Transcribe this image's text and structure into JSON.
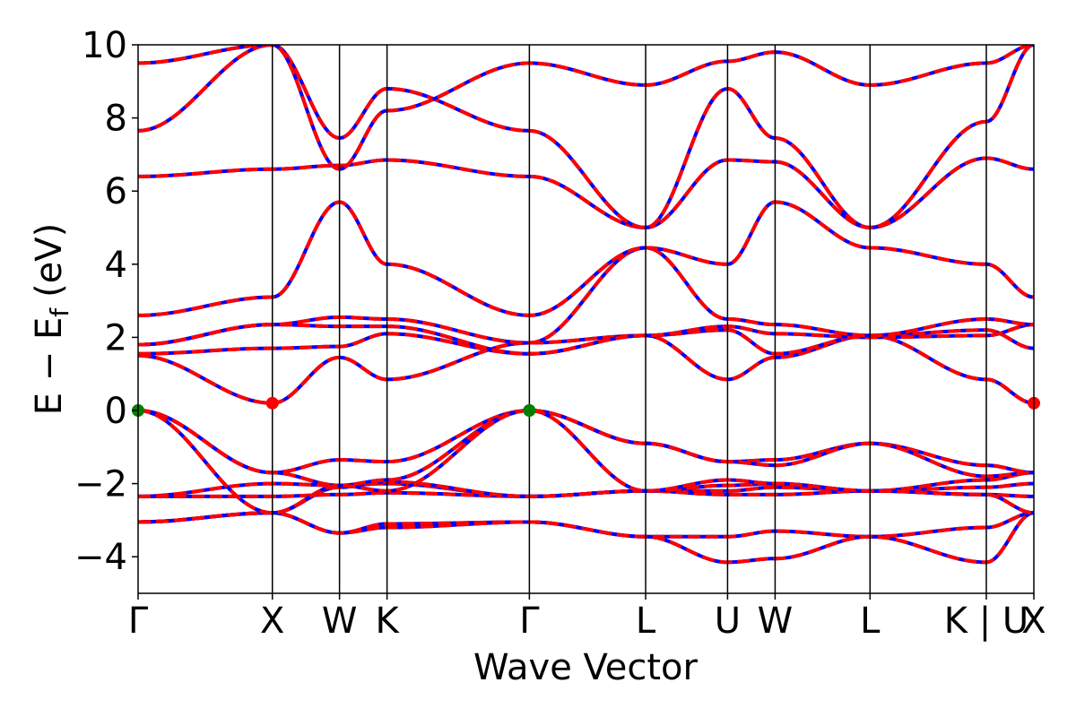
{
  "chart_data": {
    "type": "line",
    "title": "",
    "xlabel": "Wave Vector",
    "ylabel": "E − E",
    "ylabel_subscript": "f",
    "ylabel_unit": "(eV)",
    "ylim": [
      -5,
      10
    ],
    "yticks": [
      -4,
      -2,
      0,
      2,
      4,
      6,
      8,
      10
    ],
    "ytick_labels": [
      "−4",
      "−2",
      "0",
      "2",
      "4",
      "6",
      "8",
      "10"
    ],
    "grid": false,
    "legend": "none",
    "kpath": [
      {
        "label": "Γ",
        "x": 0.0
      },
      {
        "label": "X",
        "x": 1.0
      },
      {
        "label": "W",
        "x": 1.5
      },
      {
        "label": "K",
        "x": 1.854
      },
      {
        "label": "Γ",
        "x": 2.914
      },
      {
        "label": "L",
        "x": 3.78
      },
      {
        "label": "U",
        "x": 4.39
      },
      {
        "label": "W",
        "x": 4.744
      },
      {
        "label": "L",
        "x": 5.451
      },
      {
        "label": "K | U",
        "x": 6.317
      },
      {
        "label": "X",
        "x": 6.671
      }
    ],
    "colors": {
      "dft": "#0000ff",
      "fit": "#ff0000",
      "vbm": "#007f00",
      "cbm": "#ff0000"
    },
    "extrema": [
      {
        "kind": "VBM",
        "x": 0.0,
        "y": 0.0
      },
      {
        "kind": "VBM",
        "x": 2.914,
        "y": 0.0
      },
      {
        "kind": "CBM",
        "x": 1.0,
        "y": 0.2
      },
      {
        "kind": "CBM",
        "x": 6.671,
        "y": 0.2
      }
    ],
    "bands": [
      [
        [
          0,
          -2.35
        ],
        [
          1,
          -2.0
        ],
        [
          1.5,
          -2.05
        ],
        [
          1.854,
          -2.0
        ],
        [
          2.914,
          -2.35
        ],
        [
          3.78,
          -2.2
        ],
        [
          4.39,
          -2.2
        ],
        [
          4.744,
          -2.1
        ],
        [
          5.451,
          -2.2
        ],
        [
          6.317,
          -2.3
        ],
        [
          6.671,
          -2.35
        ]
      ],
      [
        [
          0,
          -2.35
        ],
        [
          1,
          -2.35
        ],
        [
          1.5,
          -2.3
        ],
        [
          1.854,
          -2.25
        ],
        [
          2.914,
          -2.35
        ],
        [
          3.78,
          -2.2
        ],
        [
          4.39,
          -2.3
        ],
        [
          4.744,
          -2.3
        ],
        [
          5.451,
          -2.2
        ],
        [
          6.317,
          -2.1
        ],
        [
          6.671,
          -2.0
        ]
      ],
      [
        [
          0,
          -3.05
        ],
        [
          1,
          -2.8
        ],
        [
          1.5,
          -2.1
        ],
        [
          1.854,
          -1.95
        ],
        [
          2.914,
          -2.35
        ],
        [
          3.78,
          -2.2
        ],
        [
          4.39,
          -2.05
        ],
        [
          4.744,
          -2.0
        ],
        [
          5.451,
          -2.2
        ],
        [
          6.317,
          -1.9
        ],
        [
          6.671,
          -1.7
        ]
      ],
      [
        [
          0,
          -3.05
        ],
        [
          1,
          -2.8
        ],
        [
          1.5,
          -3.35
        ],
        [
          1.854,
          -3.1
        ],
        [
          2.914,
          -3.05
        ],
        [
          3.78,
          -3.45
        ],
        [
          4.39,
          -3.45
        ],
        [
          4.744,
          -3.3
        ],
        [
          5.451,
          -3.45
        ],
        [
          6.317,
          -3.2
        ],
        [
          6.671,
          -2.8
        ]
      ],
      [
        [
          0,
          -3.05
        ],
        [
          1,
          -2.8
        ],
        [
          1.5,
          -3.35
        ],
        [
          1.854,
          -3.2
        ],
        [
          2.914,
          -3.05
        ],
        [
          3.78,
          -3.45
        ],
        [
          4.39,
          -4.15
        ],
        [
          4.744,
          -4.05
        ],
        [
          5.451,
          -3.45
        ],
        [
          6.317,
          -4.15
        ],
        [
          6.671,
          -2.8
        ]
      ],
      [
        [
          0,
          0.0
        ],
        [
          1,
          -1.7
        ],
        [
          1.5,
          -1.35
        ],
        [
          1.854,
          -1.4
        ],
        [
          2.914,
          0.0
        ],
        [
          3.78,
          -0.9
        ],
        [
          4.39,
          -1.4
        ],
        [
          4.744,
          -1.35
        ],
        [
          5.451,
          -0.9
        ],
        [
          6.317,
          -1.5
        ],
        [
          6.671,
          -1.7
        ]
      ],
      [
        [
          0,
          0.0
        ],
        [
          1,
          -1.7
        ],
        [
          1.5,
          -2.05
        ],
        [
          1.854,
          -1.9
        ],
        [
          2.914,
          0.0
        ],
        [
          3.78,
          -0.9
        ],
        [
          4.39,
          -1.4
        ],
        [
          4.744,
          -1.5
        ],
        [
          5.451,
          -0.9
        ],
        [
          6.317,
          -1.8
        ],
        [
          6.671,
          -1.7
        ]
      ],
      [
        [
          0,
          0.0
        ],
        [
          1,
          -2.8
        ],
        [
          1.5,
          -2.05
        ],
        [
          1.854,
          -2.2
        ],
        [
          2.914,
          0.0
        ],
        [
          3.78,
          -2.2
        ],
        [
          4.39,
          -1.9
        ],
        [
          4.744,
          -2.0
        ],
        [
          5.451,
          -2.2
        ],
        [
          6.317,
          -2.3
        ],
        [
          6.671,
          -2.8
        ]
      ],
      [
        [
          0,
          1.5
        ],
        [
          1,
          0.2
        ],
        [
          1.5,
          1.45
        ],
        [
          1.854,
          0.85
        ],
        [
          2.914,
          1.85
        ],
        [
          3.78,
          2.05
        ],
        [
          4.39,
          0.85
        ],
        [
          4.744,
          1.45
        ],
        [
          5.451,
          2.05
        ],
        [
          6.317,
          0.85
        ],
        [
          6.671,
          0.2
        ]
      ],
      [
        [
          0,
          1.55
        ],
        [
          1,
          1.7
        ],
        [
          1.5,
          1.75
        ],
        [
          1.854,
          2.1
        ],
        [
          2.914,
          1.55
        ],
        [
          3.78,
          2.05
        ],
        [
          4.39,
          2.2
        ],
        [
          4.744,
          1.55
        ],
        [
          5.451,
          2.05
        ],
        [
          6.317,
          2.2
        ],
        [
          6.671,
          1.7
        ]
      ],
      [
        [
          0,
          1.8
        ],
        [
          1,
          2.35
        ],
        [
          1.5,
          2.3
        ],
        [
          1.854,
          2.3
        ],
        [
          2.914,
          1.55
        ],
        [
          3.78,
          2.05
        ],
        [
          4.39,
          2.3
        ],
        [
          4.744,
          2.1
        ],
        [
          5.451,
          2.0
        ],
        [
          6.317,
          2.05
        ],
        [
          6.671,
          2.35
        ]
      ],
      [
        [
          0,
          1.8
        ],
        [
          1,
          2.35
        ],
        [
          1.5,
          2.55
        ],
        [
          1.854,
          2.5
        ],
        [
          2.914,
          1.85
        ],
        [
          3.78,
          4.45
        ],
        [
          4.39,
          2.5
        ],
        [
          4.744,
          2.35
        ],
        [
          5.451,
          2.05
        ],
        [
          6.317,
          2.5
        ],
        [
          6.671,
          2.35
        ]
      ],
      [
        [
          0,
          2.6
        ],
        [
          1,
          3.1
        ],
        [
          1.5,
          5.7
        ],
        [
          1.854,
          4.0
        ],
        [
          2.914,
          2.6
        ],
        [
          3.78,
          4.45
        ],
        [
          4.39,
          4.0
        ],
        [
          4.744,
          5.7
        ],
        [
          5.451,
          4.45
        ],
        [
          6.317,
          4.0
        ],
        [
          6.671,
          3.1
        ]
      ],
      [
        [
          0,
          6.4
        ],
        [
          1,
          6.6
        ],
        [
          1.5,
          6.7
        ],
        [
          1.854,
          6.85
        ],
        [
          2.914,
          6.4
        ],
        [
          3.78,
          5.0
        ],
        [
          4.39,
          6.85
        ],
        [
          4.744,
          6.8
        ],
        [
          5.451,
          5.0
        ],
        [
          6.317,
          6.9
        ],
        [
          6.671,
          6.6
        ]
      ],
      [
        [
          0,
          7.65
        ],
        [
          1,
          10.0
        ],
        [
          1.5,
          7.45
        ],
        [
          1.854,
          8.8
        ],
        [
          2.914,
          7.65
        ],
        [
          3.78,
          5.0
        ],
        [
          4.39,
          8.8
        ],
        [
          4.744,
          7.45
        ],
        [
          5.451,
          5.0
        ],
        [
          6.317,
          7.9
        ],
        [
          6.671,
          10.0
        ]
      ],
      [
        [
          0,
          9.5
        ],
        [
          1,
          10.0
        ],
        [
          1.5,
          6.6
        ],
        [
          1.854,
          8.2
        ],
        [
          2.914,
          9.5
        ],
        [
          3.78,
          8.9
        ],
        [
          4.39,
          9.55
        ],
        [
          4.744,
          9.8
        ],
        [
          5.451,
          8.9
        ],
        [
          6.317,
          9.5
        ],
        [
          6.671,
          10.0
        ]
      ]
    ]
  }
}
